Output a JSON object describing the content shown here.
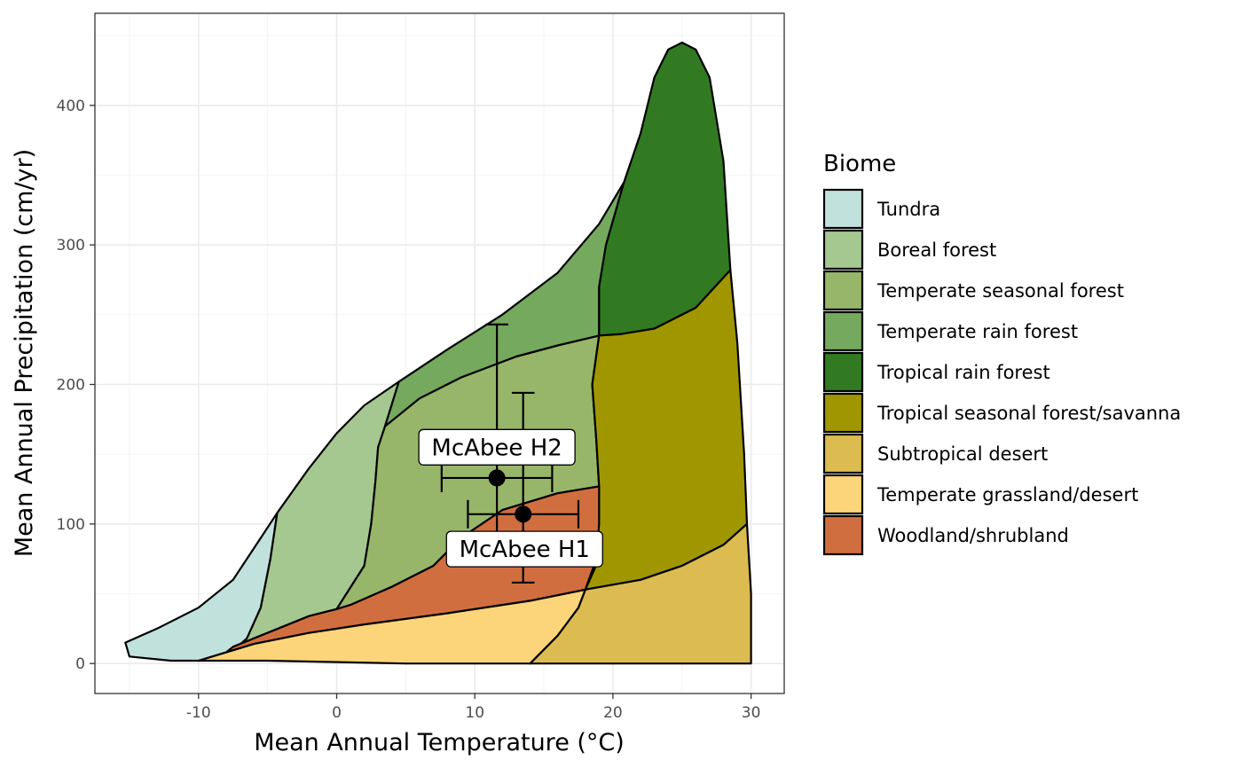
{
  "chart_data": {
    "type": "area",
    "xlabel": "Mean Annual Temperature (°C)",
    "ylabel": "Mean Annual Precipitation (cm/yr)",
    "xlim": [
      -17.5,
      32.4
    ],
    "ylim": [
      -21.5,
      466
    ],
    "x_ticks": [
      -10,
      0,
      10,
      20,
      30
    ],
    "y_ticks": [
      0,
      100,
      200,
      300,
      400
    ],
    "grid": true,
    "legend": {
      "title": "Biome",
      "position": "right"
    },
    "biomes": [
      {
        "name": "Tundra",
        "color": "#C1E1DD",
        "points": [
          [
            -4.3,
            108
          ],
          [
            -5.5,
            90
          ],
          [
            -7.5,
            60
          ],
          [
            -10,
            40
          ],
          [
            -13,
            25
          ],
          [
            -15.3,
            15
          ],
          [
            -15,
            5
          ],
          [
            -12,
            2
          ],
          [
            -10,
            2
          ],
          [
            -8,
            5
          ],
          [
            -6.5,
            18
          ],
          [
            -5.5,
            40
          ],
          [
            -4.8,
            75
          ]
        ]
      },
      {
        "name": "Boreal forest",
        "color": "#A5C790",
        "points": [
          [
            -4.3,
            108
          ],
          [
            -2,
            140
          ],
          [
            0,
            165
          ],
          [
            2,
            185
          ],
          [
            4.5,
            202
          ],
          [
            3.5,
            170
          ],
          [
            3,
            155
          ],
          [
            2.8,
            130
          ],
          [
            2.5,
            100
          ],
          [
            2,
            70
          ],
          [
            0,
            39
          ],
          [
            -2,
            34
          ],
          [
            -4,
            26
          ],
          [
            -6,
            18
          ],
          [
            -8,
            8
          ],
          [
            -10,
            2
          ],
          [
            -8,
            5
          ],
          [
            -6.5,
            18
          ],
          [
            -5.5,
            40
          ],
          [
            -4.8,
            75
          ]
        ]
      },
      {
        "name": "Temperate seasonal forest",
        "color": "#97B669",
        "points": [
          [
            3.5,
            170
          ],
          [
            6,
            190
          ],
          [
            9,
            205
          ],
          [
            13,
            220
          ],
          [
            16,
            228
          ],
          [
            19,
            235
          ],
          [
            18.5,
            200
          ],
          [
            18.8,
            160
          ],
          [
            19,
            127
          ],
          [
            16,
            122
          ],
          [
            12,
            110
          ],
          [
            9,
            90
          ],
          [
            7,
            70
          ],
          [
            4,
            55
          ],
          [
            1,
            42
          ],
          [
            0,
            39
          ],
          [
            2,
            70
          ],
          [
            2.5,
            100
          ],
          [
            2.8,
            130
          ],
          [
            3,
            155
          ]
        ]
      },
      {
        "name": "Temperate rain forest",
        "color": "#75A95E",
        "points": [
          [
            4.5,
            202
          ],
          [
            8,
            225
          ],
          [
            12,
            250
          ],
          [
            16,
            280
          ],
          [
            19,
            315
          ],
          [
            20.8,
            345
          ],
          [
            19.5,
            300
          ],
          [
            19,
            270
          ],
          [
            19,
            235
          ],
          [
            16,
            228
          ],
          [
            13,
            220
          ],
          [
            9,
            205
          ],
          [
            6,
            190
          ],
          [
            3.5,
            170
          ]
        ]
      },
      {
        "name": "Tropical rain forest",
        "color": "#317A22",
        "points": [
          [
            20.8,
            345
          ],
          [
            22,
            380
          ],
          [
            23,
            420
          ],
          [
            24,
            440
          ],
          [
            25,
            445
          ],
          [
            26,
            440
          ],
          [
            27,
            420
          ],
          [
            28,
            360
          ],
          [
            28.5,
            282
          ],
          [
            26,
            255
          ],
          [
            23,
            240
          ],
          [
            20.5,
            236
          ],
          [
            19,
            235
          ],
          [
            19,
            270
          ],
          [
            19.5,
            300
          ]
        ]
      },
      {
        "name": "Tropical seasonal forest/savanna",
        "color": "#A09700",
        "points": [
          [
            19,
            235
          ],
          [
            20.5,
            236
          ],
          [
            23,
            240
          ],
          [
            26,
            255
          ],
          [
            28.5,
            282
          ],
          [
            29,
            230
          ],
          [
            29.5,
            150
          ],
          [
            29.7,
            100
          ],
          [
            28,
            85
          ],
          [
            25,
            70
          ],
          [
            22,
            60
          ],
          [
            18,
            53
          ],
          [
            19,
            75
          ],
          [
            18.8,
            100
          ],
          [
            19,
            127
          ],
          [
            18.8,
            160
          ],
          [
            18.5,
            200
          ]
        ]
      },
      {
        "name": "Subtropical desert",
        "color": "#DCBB50",
        "points": [
          [
            18,
            53
          ],
          [
            22,
            60
          ],
          [
            25,
            70
          ],
          [
            28,
            85
          ],
          [
            29.7,
            100
          ],
          [
            30,
            50
          ],
          [
            30,
            0
          ],
          [
            20,
            0
          ],
          [
            14,
            0
          ],
          [
            16,
            20
          ],
          [
            17.5,
            40
          ]
        ]
      },
      {
        "name": "Temperate grassland/desert",
        "color": "#FCD57A",
        "points": [
          [
            -10,
            2
          ],
          [
            -8,
            8
          ],
          [
            -6,
            14
          ],
          [
            -2,
            22
          ],
          [
            2,
            28
          ],
          [
            8,
            36
          ],
          [
            14,
            45
          ],
          [
            18,
            53
          ],
          [
            17.5,
            40
          ],
          [
            16,
            20
          ],
          [
            14,
            0
          ],
          [
            5,
            0
          ],
          [
            -5,
            2
          ],
          [
            -8,
            2
          ]
        ]
      },
      {
        "name": "Woodland/shrubland",
        "color": "#D16E3F",
        "points": [
          [
            -7.5,
            12
          ],
          [
            -6,
            18
          ],
          [
            -4,
            26
          ],
          [
            -2,
            34
          ],
          [
            0,
            39
          ],
          [
            1,
            42
          ],
          [
            4,
            55
          ],
          [
            7,
            70
          ],
          [
            9,
            90
          ],
          [
            12,
            110
          ],
          [
            16,
            122
          ],
          [
            19,
            127
          ],
          [
            19,
            100
          ],
          [
            18.8,
            75
          ],
          [
            18,
            53
          ],
          [
            14,
            45
          ],
          [
            8,
            36
          ],
          [
            2,
            28
          ],
          [
            -2,
            22
          ],
          [
            -6,
            14
          ],
          [
            -8,
            8
          ]
        ]
      }
    ],
    "sites": [
      {
        "name": "McAbee H2",
        "x": 11.6,
        "y": 133,
        "x_err": [
          7.6,
          15.6
        ],
        "y_err": [
          73,
          243
        ],
        "label_x": 11.6,
        "label_y": 155
      },
      {
        "name": "McAbee H1",
        "x": 13.5,
        "y": 107,
        "x_err": [
          9.5,
          17.5
        ],
        "y_err": [
          58,
          194
        ],
        "label_x": 13.6,
        "label_y": 82
      }
    ]
  }
}
